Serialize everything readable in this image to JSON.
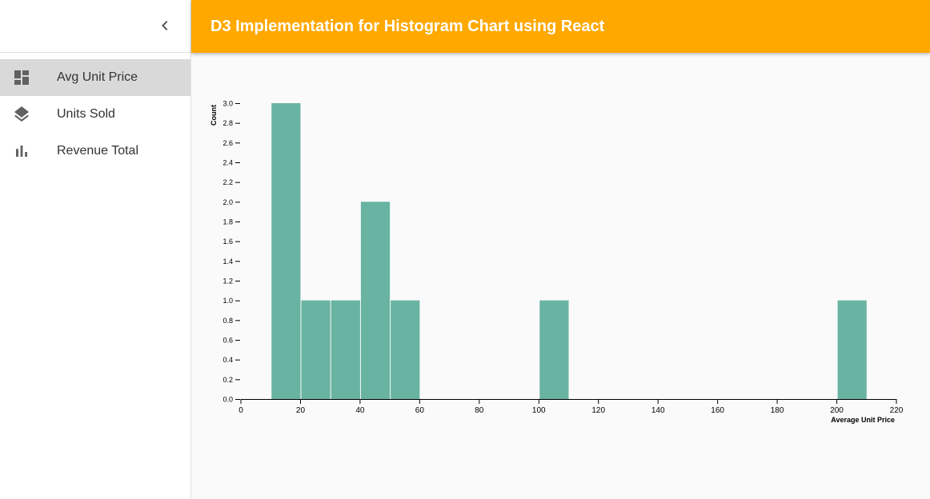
{
  "sidebar": {
    "collapse_icon": "chevron-left-icon",
    "items": [
      {
        "label": "Avg Unit Price",
        "icon": "dashboard-icon",
        "active": true
      },
      {
        "label": "Units Sold",
        "icon": "layers-icon",
        "active": false
      },
      {
        "label": "Revenue Total",
        "icon": "bar-chart-icon",
        "active": false
      }
    ]
  },
  "header": {
    "title": "D3 Implementation for Histogram Chart using React",
    "color": "#ffa800"
  },
  "chart_data": {
    "type": "bar",
    "xlabel": "Average Unit Price",
    "ylabel": "Count",
    "xlim": [
      0,
      220
    ],
    "ylim": [
      0,
      3
    ],
    "x_ticks": [
      0,
      20,
      40,
      60,
      80,
      100,
      120,
      140,
      160,
      180,
      200,
      220
    ],
    "y_ticks": [
      "0.0",
      "0.2",
      "0.4",
      "0.6",
      "0.8",
      "1.0",
      "1.2",
      "1.4",
      "1.6",
      "1.8",
      "2.0",
      "2.2",
      "2.4",
      "2.6",
      "2.8",
      "3.0"
    ],
    "bar_color": "#69b3a2",
    "bins": [
      {
        "x0": 10,
        "x1": 20,
        "count": 3
      },
      {
        "x0": 20,
        "x1": 30,
        "count": 1
      },
      {
        "x0": 30,
        "x1": 40,
        "count": 1
      },
      {
        "x0": 40,
        "x1": 50,
        "count": 2
      },
      {
        "x0": 50,
        "x1": 60,
        "count": 1
      },
      {
        "x0": 100,
        "x1": 110,
        "count": 1
      },
      {
        "x0": 200,
        "x1": 210,
        "count": 1
      }
    ],
    "grid": false,
    "legend": "none"
  }
}
